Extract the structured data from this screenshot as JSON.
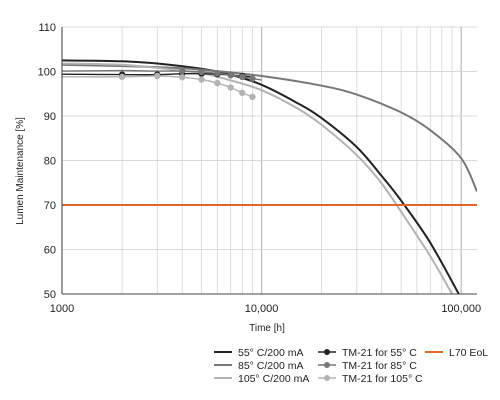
{
  "chart_data": {
    "type": "line",
    "title": "",
    "xlabel": "Time [h]",
    "ylabel": "Lumen Maintenance [%]",
    "xscale": "log",
    "xlim": [
      1000,
      120000
    ],
    "ylim": [
      50,
      110
    ],
    "grid": true,
    "x_tick_labels": [
      "1000",
      "10,000",
      "100,000"
    ],
    "y_tick_labels": [
      "50",
      "60",
      "70",
      "80",
      "90",
      "100",
      "110"
    ],
    "legend_position": "bottom",
    "colors": {
      "c55": "#222222",
      "c85": "#777777",
      "c105": "#b3b3b3",
      "l70": "#e0662a",
      "grid": "#cfcfcf"
    },
    "curves": [
      {
        "name": "55° C/200 mA",
        "color": "#222222",
        "points": [
          [
            1000,
            102.5
          ],
          [
            2000,
            102.3
          ],
          [
            3000,
            101.8
          ],
          [
            5000,
            100.6
          ],
          [
            7000,
            99.3
          ],
          [
            10000,
            97.0
          ],
          [
            15000,
            93.0
          ],
          [
            20000,
            89.5
          ],
          [
            30000,
            83.0
          ],
          [
            40000,
            76.5
          ],
          [
            50000,
            71.0
          ],
          [
            70000,
            61.5
          ],
          [
            100000,
            49.0
          ]
        ]
      },
      {
        "name": "85° C/200 mA",
        "color": "#777777",
        "points": [
          [
            1000,
            101.5
          ],
          [
            3000,
            101.0
          ],
          [
            5000,
            100.4
          ],
          [
            10000,
            99.0
          ],
          [
            20000,
            96.8
          ],
          [
            30000,
            94.8
          ],
          [
            50000,
            90.8
          ],
          [
            70000,
            86.8
          ],
          [
            100000,
            80.5
          ],
          [
            120000,
            73.0
          ]
        ]
      },
      {
        "name": "105° C/200 mA",
        "color": "#b3b3b3",
        "points": [
          [
            1000,
            101.8
          ],
          [
            2000,
            101.5
          ],
          [
            3000,
            100.8
          ],
          [
            5000,
            99.6
          ],
          [
            7000,
            98.0
          ],
          [
            10000,
            95.8
          ],
          [
            15000,
            91.8
          ],
          [
            20000,
            88.0
          ],
          [
            30000,
            81.2
          ],
          [
            40000,
            74.8
          ],
          [
            50000,
            68.5
          ],
          [
            70000,
            58.5
          ],
          [
            90000,
            50.0
          ]
        ]
      },
      {
        "name": "TM-21 for 55° C",
        "color": "#222222",
        "points": [
          [
            1000,
            99.4
          ],
          [
            2000,
            99.3
          ],
          [
            3000,
            99.3
          ],
          [
            4000,
            99.5
          ],
          [
            5000,
            99.5
          ],
          [
            6000,
            99.4
          ],
          [
            7000,
            99.2
          ],
          [
            8000,
            99.0
          ],
          [
            9000,
            98.8
          ]
        ]
      },
      {
        "name": "TM-21 for 85° C",
        "color": "#777777",
        "points": [
          [
            1000,
            100.1
          ],
          [
            2000,
            100.2
          ],
          [
            3000,
            100.1
          ],
          [
            4000,
            100.1
          ],
          [
            5000,
            99.9
          ],
          [
            6000,
            99.6
          ],
          [
            7000,
            99.2
          ],
          [
            8000,
            98.8
          ],
          [
            9000,
            98.4
          ],
          [
            10000,
            98.1
          ]
        ]
      },
      {
        "name": "TM-21 for 105° C",
        "color": "#b3b3b3",
        "points": [
          [
            1000,
            98.8
          ],
          [
            2000,
            98.8
          ],
          [
            3000,
            99.0
          ],
          [
            4000,
            98.7
          ],
          [
            5000,
            98.2
          ],
          [
            6000,
            97.4
          ],
          [
            7000,
            96.4
          ],
          [
            8000,
            95.2
          ],
          [
            9000,
            94.3
          ]
        ]
      }
    ],
    "markers": [
      {
        "series": "TM-21 for 55° C",
        "color": "#222222",
        "x": [
          2000,
          3000,
          4000,
          5000,
          6000,
          7000,
          8000
        ],
        "y": [
          99.3,
          99.3,
          99.5,
          99.5,
          99.4,
          99.2,
          99.0
        ]
      },
      {
        "series": "TM-21 for 85° C",
        "color": "#777777",
        "x": [
          4000,
          5000,
          6000,
          7000,
          8000,
          9000
        ],
        "y": [
          100.1,
          99.9,
          99.6,
          99.2,
          98.8,
          98.4
        ]
      },
      {
        "series": "TM-21 for 105° C",
        "color": "#b3b3b3",
        "x": [
          2000,
          3000,
          4000,
          5000,
          6000,
          7000,
          8000,
          9000
        ],
        "y": [
          98.8,
          99.0,
          98.7,
          98.2,
          97.4,
          96.4,
          95.2,
          94.3
        ]
      }
    ],
    "l70": {
      "name": "L70 EoL",
      "y": 70,
      "color": "#e0662a"
    },
    "legend": [
      {
        "label": "55° C/200 mA",
        "style": "line",
        "color": "#222222"
      },
      {
        "label": "85° C/200 mA",
        "style": "line",
        "color": "#777777"
      },
      {
        "label": "105° C/200 mA",
        "style": "line",
        "color": "#b3b3b3"
      },
      {
        "label": "TM-21 for 55° C",
        "style": "marker",
        "color": "#222222"
      },
      {
        "label": "TM-21 for 85° C",
        "style": "marker",
        "color": "#777777"
      },
      {
        "label": "TM-21 for 105° C",
        "style": "marker",
        "color": "#b3b3b3"
      },
      {
        "label": "L70 EoL",
        "style": "line",
        "color": "#e0662a"
      }
    ]
  }
}
